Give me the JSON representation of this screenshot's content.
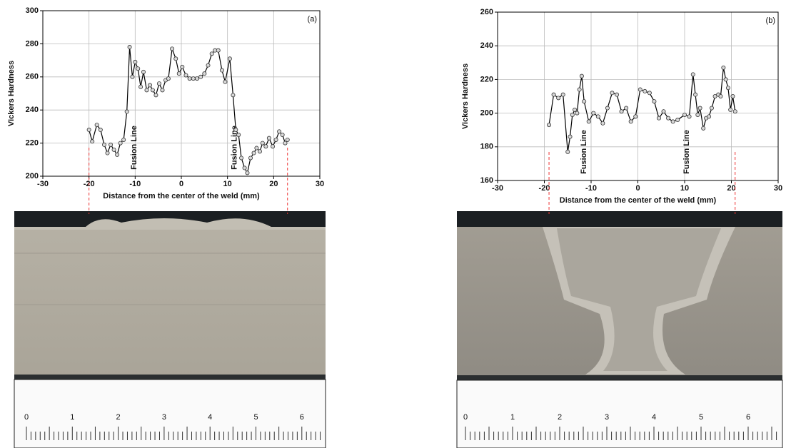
{
  "chart_data": [
    {
      "type": "line",
      "panel_label": "(a)",
      "y_label": "Vickers Hardness",
      "x_label": "Distance from the center of the weld (mm)",
      "xlim": [
        -30,
        30
      ],
      "xticks": [
        -30,
        -20,
        -10,
        0,
        10,
        20,
        30
      ],
      "ylim": [
        200,
        300
      ],
      "yticks": [
        200,
        220,
        240,
        260,
        280,
        300
      ],
      "grid": true,
      "color": "#000000",
      "marker_color": "#d8d8d8",
      "annotations": [
        "Fusion Line",
        "Fusion Line"
      ],
      "x": [
        -20,
        -19.3,
        -18.3,
        -17.5,
        -16.7,
        -16,
        -15.3,
        -14.6,
        -13.9,
        -13.2,
        -12.5,
        -11.8,
        -11.2,
        -10.6,
        -10,
        -9.4,
        -8.8,
        -8.2,
        -7.5,
        -6.8,
        -6.2,
        -5.5,
        -4.8,
        -4.1,
        -3.4,
        -2.8,
        -2,
        -1.2,
        -0.5,
        0.2,
        1,
        1.8,
        2.6,
        3.4,
        4.2,
        5,
        5.8,
        6.6,
        7.3,
        8,
        8.8,
        9.5,
        10.5,
        11.2,
        11.8,
        12.4,
        13,
        13.7,
        14.3,
        15,
        15.7,
        16.3,
        17,
        17.6,
        18.3,
        19,
        19.8,
        20.5,
        21.2,
        21.9,
        22.5,
        23
      ],
      "values": [
        228,
        221,
        231,
        228,
        219,
        214,
        219,
        216,
        213,
        220,
        222,
        239,
        278,
        260,
        269,
        265,
        254,
        263,
        252,
        255,
        252,
        249,
        256,
        252,
        258,
        259,
        277,
        271,
        262,
        266,
        261,
        259,
        259,
        259,
        260,
        262,
        267,
        274,
        276,
        276,
        264,
        257,
        271,
        249,
        228,
        225,
        211,
        205,
        202,
        211,
        214,
        217,
        215,
        220,
        218,
        223,
        218,
        222,
        227,
        225,
        220,
        222
      ]
    },
    {
      "type": "line",
      "panel_label": "(b)",
      "y_label": "Vickers Hardness",
      "x_label": "Distance from the center of the weld (mm)",
      "xlim": [
        -30,
        30
      ],
      "xticks": [
        -30,
        -20,
        -10,
        0,
        10,
        20,
        30
      ],
      "ylim": [
        160,
        260
      ],
      "yticks": [
        160,
        180,
        200,
        220,
        240,
        260
      ],
      "grid": true,
      "color": "#000000",
      "marker_color": "#d8d8d8",
      "annotations": [
        "Fusion Line",
        "Fusion Line"
      ],
      "x": [
        -19,
        -18,
        -17,
        -16,
        -15,
        -14.5,
        -14,
        -13.5,
        -13,
        -12.5,
        -12,
        -11.5,
        -10.5,
        -9.5,
        -8.5,
        -7.5,
        -6.5,
        -5.5,
        -4.5,
        -3.5,
        -2.5,
        -1.5,
        -0.5,
        0.5,
        1.5,
        2.5,
        3.5,
        4.5,
        5.5,
        6.5,
        7.5,
        8.5,
        10,
        11,
        11.8,
        12.3,
        12.8,
        13.3,
        14,
        14.6,
        15.2,
        15.8,
        16.5,
        17.2,
        17.7,
        18.3,
        18.8,
        19.3,
        19.8,
        20.3,
        20.8
      ],
      "values": [
        193,
        211,
        209,
        211,
        177,
        186,
        199,
        202,
        200,
        214,
        222,
        207,
        195,
        200,
        198,
        194,
        203,
        212,
        211,
        201,
        203,
        195,
        198,
        214,
        213,
        212,
        207,
        197,
        201,
        197,
        195,
        196,
        199,
        198,
        223,
        211,
        199,
        203,
        191,
        197,
        198,
        203,
        210,
        211,
        210,
        227,
        220,
        215,
        202,
        210,
        201
      ]
    }
  ],
  "rulers": [
    {
      "labels": [
        0,
        1,
        2,
        3,
        4,
        5,
        6
      ]
    },
    {
      "labels": [
        0,
        1,
        2,
        3,
        4,
        5,
        6
      ]
    }
  ]
}
